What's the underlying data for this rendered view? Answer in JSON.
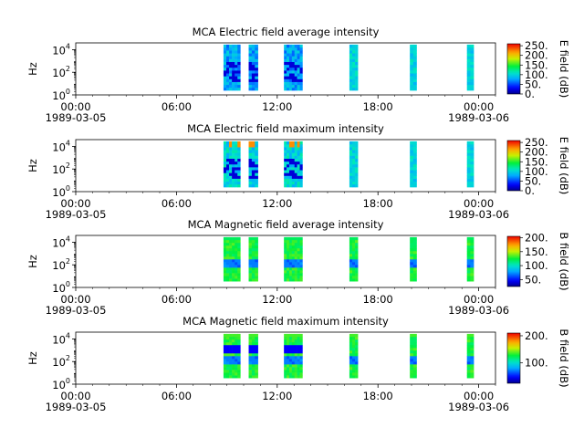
{
  "panels": [
    {
      "title": "MCA  Electric field average intensity",
      "ylabel": "Hz",
      "colorbar_label": "E field (dB)",
      "colorbar_ticks": [
        "250.",
        "200.",
        "150.",
        "100.",
        "50.",
        "0."
      ],
      "colorbar_values": [
        250,
        200,
        150,
        100,
        50,
        0
      ],
      "colorbar_range": [
        0,
        260
      ],
      "y_ticks": [
        {
          "base": "10",
          "exp": "4",
          "value": 4
        },
        {
          "base": "10",
          "exp": "2",
          "value": 2
        },
        {
          "base": "10",
          "exp": "0",
          "value": 0
        }
      ],
      "x_ticks": [
        {
          "time": "00:00",
          "date": "1989-03-05",
          "hour": 0
        },
        {
          "time": "06:00",
          "date": "",
          "hour": 6
        },
        {
          "time": "12:00",
          "date": "",
          "hour": 12
        },
        {
          "time": "18:00",
          "date": "",
          "hour": 18
        },
        {
          "time": "00:00",
          "date": "1989-03-06",
          "hour": 24
        }
      ]
    },
    {
      "title": "MCA  Electric field maximum intensity",
      "ylabel": "Hz",
      "colorbar_label": "E field (dB)",
      "colorbar_ticks": [
        "250.",
        "200.",
        "150.",
        "100.",
        "50.",
        "0."
      ],
      "colorbar_values": [
        250,
        200,
        150,
        100,
        50,
        0
      ],
      "colorbar_range": [
        0,
        260
      ],
      "y_ticks": [
        {
          "base": "10",
          "exp": "4",
          "value": 4
        },
        {
          "base": "10",
          "exp": "2",
          "value": 2
        },
        {
          "base": "10",
          "exp": "0",
          "value": 0
        }
      ],
      "x_ticks": [
        {
          "time": "00:00",
          "date": "1989-03-05",
          "hour": 0
        },
        {
          "time": "06:00",
          "date": "",
          "hour": 6
        },
        {
          "time": "12:00",
          "date": "",
          "hour": 12
        },
        {
          "time": "18:00",
          "date": "",
          "hour": 18
        },
        {
          "time": "00:00",
          "date": "1989-03-06",
          "hour": 24
        }
      ]
    },
    {
      "title": "MCA  Magnetic field average intensity",
      "ylabel": "Hz",
      "colorbar_label": "B field (dB)",
      "colorbar_ticks": [
        "200.",
        "150.",
        "100.",
        "50."
      ],
      "colorbar_values": [
        200,
        150,
        100,
        50
      ],
      "colorbar_range": [
        25,
        205
      ],
      "y_ticks": [
        {
          "base": "10",
          "exp": "4",
          "value": 4
        },
        {
          "base": "10",
          "exp": "2",
          "value": 2
        },
        {
          "base": "10",
          "exp": "0",
          "value": 0
        }
      ],
      "x_ticks": [
        {
          "time": "00:00",
          "date": "1989-03-05",
          "hour": 0
        },
        {
          "time": "06:00",
          "date": "",
          "hour": 6
        },
        {
          "time": "12:00",
          "date": "",
          "hour": 12
        },
        {
          "time": "18:00",
          "date": "",
          "hour": 18
        },
        {
          "time": "00:00",
          "date": "1989-03-06",
          "hour": 24
        }
      ]
    },
    {
      "title": "MCA  Magnetic field maximum intensity",
      "ylabel": "Hz",
      "colorbar_label": "B field (dB)",
      "colorbar_ticks": [
        "200.",
        "100."
      ],
      "colorbar_values": [
        200,
        100
      ],
      "colorbar_range": [
        25,
        210
      ],
      "y_ticks": [
        {
          "base": "10",
          "exp": "4",
          "value": 4
        },
        {
          "base": "10",
          "exp": "2",
          "value": 2
        },
        {
          "base": "10",
          "exp": "0",
          "value": 0
        }
      ],
      "x_ticks": [
        {
          "time": "00:00",
          "date": "1989-03-05",
          "hour": 0
        },
        {
          "time": "06:00",
          "date": "",
          "hour": 6
        },
        {
          "time": "12:00",
          "date": "",
          "hour": 12
        },
        {
          "time": "18:00",
          "date": "",
          "hour": 18
        },
        {
          "time": "00:00",
          "date": "1989-03-06",
          "hour": 24
        }
      ]
    }
  ],
  "chart_data": [
    {
      "type": "heatmap",
      "title": "MCA  Electric field average intensity",
      "xlabel": "",
      "ylabel": "Hz",
      "xlim_hours": [
        0,
        25
      ],
      "ylim_log10": [
        0,
        4.6
      ],
      "y_scale": "log",
      "colorbar_label": "E field (dB)",
      "segments_hours": [
        [
          8.8,
          9.8
        ],
        [
          10.3,
          10.85
        ],
        [
          12.4,
          13.5
        ],
        [
          16.3,
          16.8
        ],
        [
          19.9,
          20.3
        ],
        [
          23.3,
          23.7
        ]
      ]
    },
    {
      "type": "heatmap",
      "title": "MCA  Electric field maximum intensity",
      "xlabel": "",
      "ylabel": "Hz",
      "xlim_hours": [
        0,
        25
      ],
      "ylim_log10": [
        0,
        4.6
      ],
      "y_scale": "log",
      "colorbar_label": "E field (dB)",
      "segments_hours": [
        [
          8.8,
          9.8
        ],
        [
          10.3,
          10.85
        ],
        [
          12.4,
          13.5
        ],
        [
          16.3,
          16.8
        ],
        [
          19.9,
          20.3
        ],
        [
          23.3,
          23.7
        ]
      ]
    },
    {
      "type": "heatmap",
      "title": "MCA  Magnetic field average intensity",
      "xlabel": "",
      "ylabel": "Hz",
      "xlim_hours": [
        0,
        25
      ],
      "ylim_log10": [
        0,
        4.6
      ],
      "y_scale": "log",
      "colorbar_label": "B field (dB)",
      "segments_hours": [
        [
          8.8,
          9.8
        ],
        [
          10.3,
          10.85
        ],
        [
          12.4,
          13.5
        ],
        [
          16.3,
          16.8
        ],
        [
          19.9,
          20.3
        ],
        [
          23.3,
          23.7
        ]
      ]
    },
    {
      "type": "heatmap",
      "title": "MCA  Magnetic field maximum intensity",
      "xlabel": "",
      "ylabel": "Hz",
      "xlim_hours": [
        0,
        25
      ],
      "ylim_log10": [
        0,
        4.6
      ],
      "y_scale": "log",
      "colorbar_label": "B field (dB)",
      "segments_hours": [
        [
          8.8,
          9.8
        ],
        [
          10.3,
          10.85
        ],
        [
          12.4,
          13.5
        ],
        [
          16.3,
          16.8
        ],
        [
          19.9,
          20.3
        ],
        [
          23.3,
          23.7
        ]
      ]
    }
  ]
}
